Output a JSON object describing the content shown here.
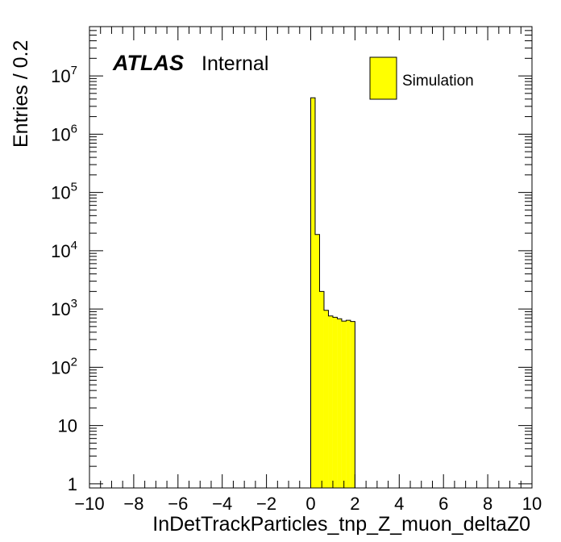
{
  "chart_data": {
    "type": "bar",
    "title": "",
    "xlabel": "InDetTrackParticles_tnp_Z_muon_deltaZ0",
    "ylabel": "Entries / 0.2",
    "xlim": [
      -10,
      10
    ],
    "ylim": [
      0.85,
      70000000
    ],
    "yscale": "log",
    "grid": false,
    "legend_position": "top-right",
    "x_tick_labels": [
      "−10",
      "−8",
      "−6",
      "−4",
      "−2",
      "0",
      "2",
      "4",
      "6",
      "8",
      "10"
    ],
    "y_tick_labels": [
      {
        "base": "1",
        "exp": ""
      },
      {
        "base": "10",
        "exp": ""
      },
      {
        "base": "10",
        "exp": "2"
      },
      {
        "base": "10",
        "exp": "3"
      },
      {
        "base": "10",
        "exp": "4"
      },
      {
        "base": "10",
        "exp": "5"
      },
      {
        "base": "10",
        "exp": "6"
      },
      {
        "base": "10",
        "exp": "7"
      }
    ],
    "bin_width": 0.2,
    "bin_edges": [
      0.0,
      0.2,
      0.4,
      0.6,
      0.8,
      1.0,
      1.2,
      1.4,
      1.6,
      1.8,
      2.0
    ],
    "series": [
      {
        "name": "Simulation",
        "color": "#ffff00",
        "values": [
          4200000,
          19000,
          2000,
          950,
          760,
          720,
          680,
          620,
          640,
          610
        ]
      }
    ],
    "annotations": {
      "atlas_label": "ATLAS",
      "atlas_sublabel": "Internal"
    }
  }
}
